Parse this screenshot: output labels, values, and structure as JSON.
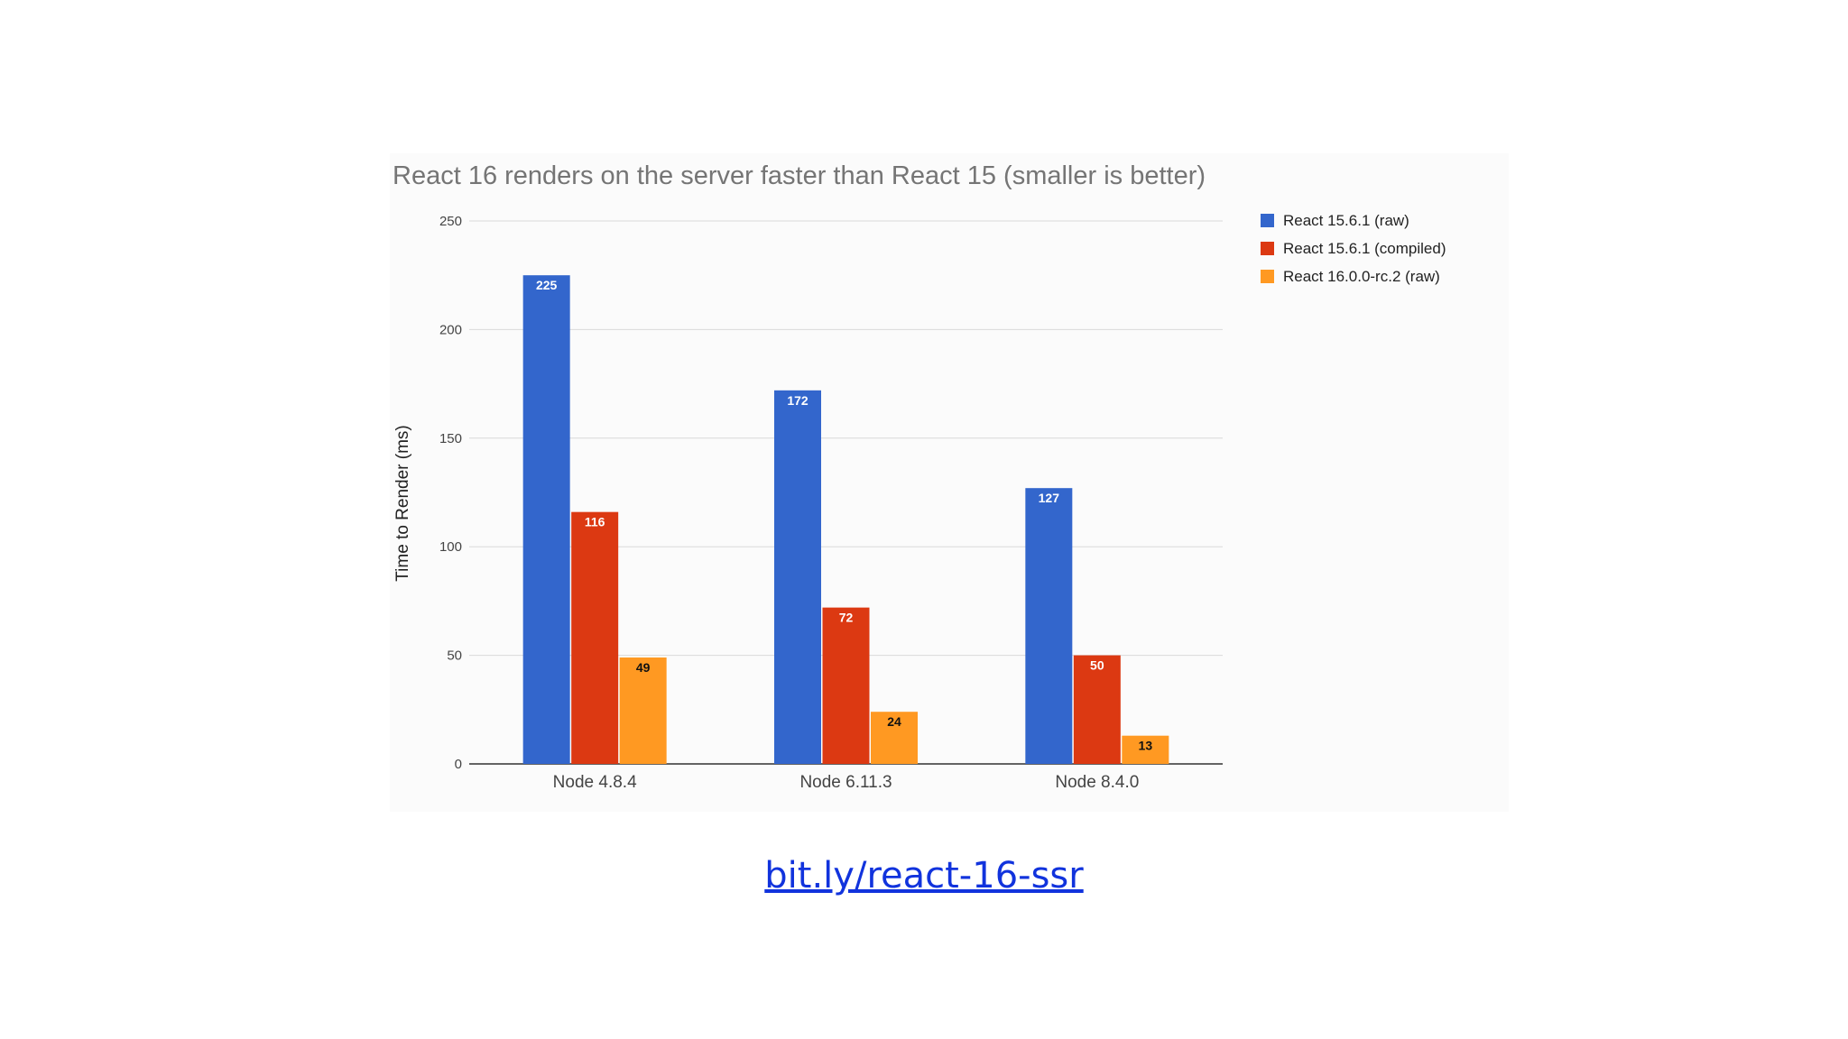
{
  "chart_data": {
    "type": "bar",
    "title": "React 16 renders on the server faster than React 15 (smaller is better)",
    "xlabel": "",
    "ylabel": "Time to Render (ms)",
    "ylim": [
      0,
      250
    ],
    "yticks": [
      0,
      50,
      100,
      150,
      200,
      250
    ],
    "categories": [
      "Node 4.8.4",
      "Node 6.11.3",
      "Node 8.4.0"
    ],
    "grid": true,
    "legend_position": "right",
    "series": [
      {
        "name": "React 15.6.1 (raw)",
        "color": "#3366cc",
        "label_color": "#ffffff",
        "values": [
          225,
          172,
          127
        ]
      },
      {
        "name": "React 15.6.1 (compiled)",
        "color": "#dc3912",
        "label_color": "#ffffff",
        "values": [
          116,
          72,
          50
        ]
      },
      {
        "name": "React 16.0.0-rc.2 (raw)",
        "color": "#ff9922",
        "label_color": "#111111",
        "values": [
          49,
          24,
          13
        ]
      }
    ]
  },
  "link": {
    "text": "bit.ly/react-16-ssr"
  }
}
